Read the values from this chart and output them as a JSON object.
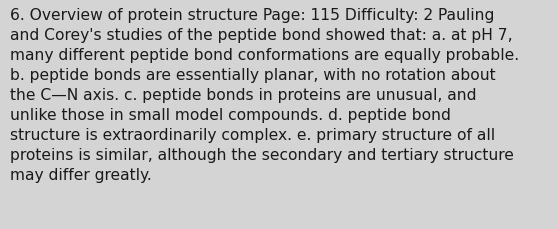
{
  "background_color": "#d4d4d4",
  "text_color": "#1a1a1a",
  "font_size": 11.2,
  "font_family": "DejaVu Sans",
  "lines": [
    "6. Overview of protein structure Page: 115 Difficulty: 2 Pauling",
    "and Corey's studies of the peptide bond showed that: a. at pH 7,",
    "many different peptide bond conformations are equally probable.",
    "b. peptide bonds are essentially planar, with no rotation about",
    "the C—N axis. c. peptide bonds in proteins are unusual, and",
    "unlike those in small model compounds. d. peptide bond",
    "structure is extraordinarily complex. e. primary structure of all",
    "proteins is similar, although the secondary and tertiary structure",
    "may differ greatly."
  ]
}
